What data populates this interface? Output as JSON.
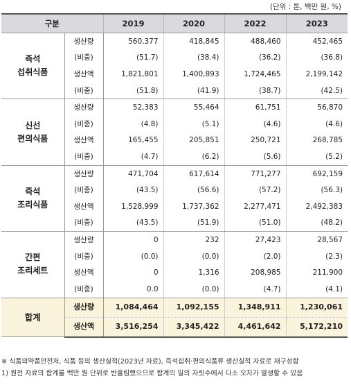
{
  "unit_note": "(단위 : 톤, 백만 원, %)",
  "header": {
    "group": "구분",
    "years": [
      "2019",
      "2020",
      "2022",
      "2023"
    ]
  },
  "categories": [
    {
      "name_line1": "즉석",
      "name_line2": "섭취식품",
      "rows": [
        {
          "metric": "생산량",
          "values": [
            "560,377",
            "418,845",
            "488,460",
            "452,465"
          ]
        },
        {
          "metric": "(비중)",
          "values": [
            "(51.7)",
            "(38.4)",
            "(36.2)",
            "(36.8)"
          ]
        },
        {
          "metric": "생산액",
          "values": [
            "1,821,801",
            "1,400,893",
            "1,724,465",
            "2,199,142"
          ]
        },
        {
          "metric": "(비중)",
          "values": [
            "(51.8)",
            "(41.9)",
            "(38.7)",
            "(42.5)"
          ]
        }
      ]
    },
    {
      "name_line1": "신선",
      "name_line2": "편의식품",
      "rows": [
        {
          "metric": "생산량",
          "values": [
            "52,383",
            "55,464",
            "61,751",
            "56,870"
          ]
        },
        {
          "metric": "(비중)",
          "values": [
            "(4.8)",
            "(5.1)",
            "(4.6)",
            "(4.6)"
          ]
        },
        {
          "metric": "생산액",
          "values": [
            "165,455",
            "205,851",
            "250,721",
            "268,785"
          ]
        },
        {
          "metric": "(비중)",
          "values": [
            "(4.7)",
            "(6.2)",
            "(5.6)",
            "(5.2)"
          ]
        }
      ]
    },
    {
      "name_line1": "즉석",
      "name_line2": "조리식품",
      "rows": [
        {
          "metric": "생산량",
          "values": [
            "471,704",
            "617,614",
            "771,277",
            "692,159"
          ]
        },
        {
          "metric": "(비중)",
          "values": [
            "(43.5)",
            "(56.6)",
            "(57.2)",
            "(56.3)"
          ]
        },
        {
          "metric": "생산액",
          "values": [
            "1,528,999",
            "1,737,362",
            "2,277,471",
            "2,492,383"
          ]
        },
        {
          "metric": "(비중)",
          "values": [
            "(43.5)",
            "(51.9)",
            "(51.0)",
            "(48.2)"
          ]
        }
      ]
    },
    {
      "name_line1": "간편",
      "name_line2": "조리세트",
      "rows": [
        {
          "metric": "생산량",
          "values": [
            "0",
            "232",
            "27,423",
            "28,567"
          ]
        },
        {
          "metric": "(비중)",
          "values": [
            "(0.0)",
            "(0.0)",
            "(2.0)",
            "(2.3)"
          ]
        },
        {
          "metric": "생산액",
          "values": [
            "0",
            "1,316",
            "208,985",
            "211,900"
          ]
        },
        {
          "metric": "(비중)",
          "values": [
            "0.0",
            "(0.0)",
            "(4.7)",
            "(4.1)"
          ]
        }
      ]
    }
  ],
  "total": {
    "name": "합계",
    "rows": [
      {
        "metric": "생산량",
        "values": [
          "1,084,464",
          "1,092,155",
          "1,348,911",
          "1,230,061"
        ]
      },
      {
        "metric": "생산액",
        "values": [
          "3,516,254",
          "3,345,422",
          "4,461,642",
          "5,172,210"
        ]
      }
    ]
  },
  "notes": [
    "※ 식품의약품안전처, 식품 등의 생산실적(2023년 자료), 즉석섭취·편의식품류 생산실적 자료로 재구성함",
    "1) 원천 자료의 합계를 백만 원 단위로 반올림했으므로 합계의 일의 자릿수에서 다소 오차가 발생할 수 있음"
  ]
}
